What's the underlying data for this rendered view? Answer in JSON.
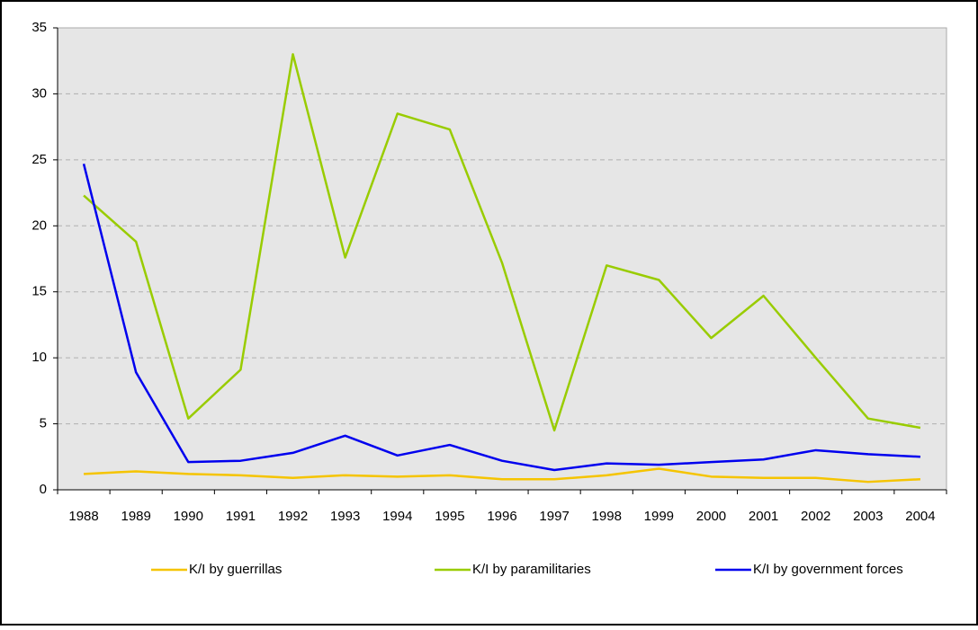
{
  "chart_data": {
    "type": "line",
    "categories": [
      "1988",
      "1989",
      "1990",
      "1991",
      "1992",
      "1993",
      "1994",
      "1995",
      "1996",
      "1997",
      "1998",
      "1999",
      "2000",
      "2001",
      "2002",
      "2003",
      "2004"
    ],
    "series": [
      {
        "name": "K/I by guerrillas",
        "color": "#f5c400",
        "values": [
          1.2,
          1.4,
          1.2,
          1.1,
          0.9,
          1.1,
          1.0,
          1.1,
          0.8,
          0.8,
          1.1,
          1.6,
          1.0,
          0.9,
          0.9,
          0.6,
          0.8
        ]
      },
      {
        "name": "K/I by paramilitaries",
        "color": "#99cc00",
        "values": [
          22.3,
          18.8,
          5.4,
          9.1,
          33.0,
          17.6,
          28.5,
          27.3,
          17.2,
          4.5,
          17.0,
          15.9,
          11.5,
          14.7,
          10.0,
          5.4,
          4.7
        ]
      },
      {
        "name": "K/I by government forces",
        "color": "#0000ee",
        "values": [
          24.7,
          8.9,
          2.1,
          2.2,
          2.8,
          4.1,
          2.6,
          3.4,
          2.2,
          1.5,
          2.0,
          1.9,
          2.1,
          2.3,
          3.0,
          2.7,
          2.5
        ]
      }
    ],
    "ylim": [
      0,
      35
    ],
    "yticks": [
      0,
      5,
      10,
      15,
      20,
      25,
      30,
      35
    ],
    "grid": true,
    "legend": "bottom"
  }
}
